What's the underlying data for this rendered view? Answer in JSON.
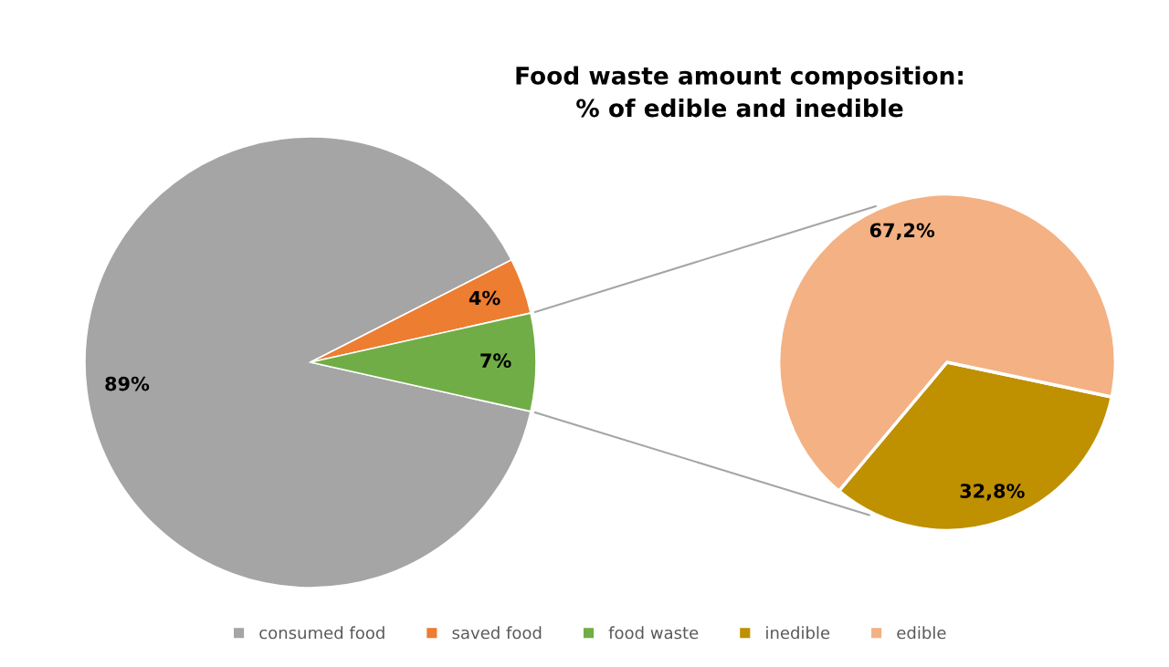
{
  "chart_data": [
    {
      "type": "pie",
      "categories": [
        "consumed food",
        "saved food",
        "food waste"
      ],
      "values": [
        89,
        4,
        7
      ],
      "colors": [
        "#a5a5a5",
        "#ed7d31",
        "#70ad47"
      ],
      "value_labels": [
        "89%",
        "4%",
        "7%"
      ],
      "legend": "bottom"
    },
    {
      "type": "pie",
      "title": "Food waste amount composition:\n% of edible and inedible",
      "categories": [
        "inedible",
        "edible"
      ],
      "values": [
        32.8,
        67.2
      ],
      "colors": [
        "#bf9000",
        "#f4b183"
      ],
      "value_labels": [
        "32,8%",
        "67,2%"
      ],
      "legend": "bottom"
    }
  ]
}
